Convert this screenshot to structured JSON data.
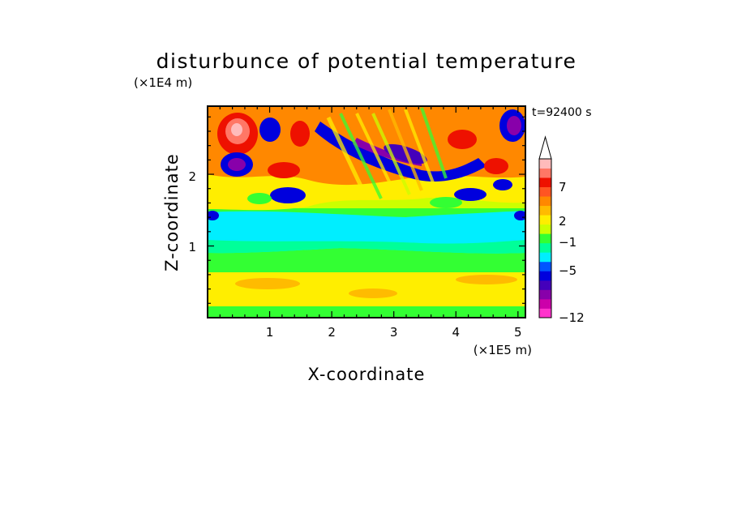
{
  "chart_data": {
    "type": "heatmap",
    "title": "disturbunce of potential temperature",
    "time_label": "t=92400 s",
    "xlabel": "X-coordinate",
    "ylabel": "Z-coordinate",
    "x_unit": "(×1E5 m)",
    "y_unit": "(×1E4 m)",
    "xlim": [
      0,
      5.12
    ],
    "ylim": [
      0,
      2.95
    ],
    "x_ticks": [
      "1",
      "2",
      "3",
      "4",
      "5"
    ],
    "y_ticks": [
      "1",
      "2"
    ],
    "colorbar": {
      "colors": [
        "#ff33cc",
        "#cc00aa",
        "#8800aa",
        "#4400bb",
        "#0000dd",
        "#0055ff",
        "#00eeff",
        "#00ff99",
        "#33ff33",
        "#ccff00",
        "#ffee00",
        "#ffbb00",
        "#ff8800",
        "#ff5522",
        "#ee1100",
        "#ff7766",
        "#ffbbbb",
        "#ffffff"
      ],
      "tick_labels": [
        "7",
        "2",
        "−1",
        "−5",
        "−12"
      ],
      "tick_values": [
        7,
        2,
        -1,
        -5,
        -12
      ],
      "extend": "max"
    }
  }
}
